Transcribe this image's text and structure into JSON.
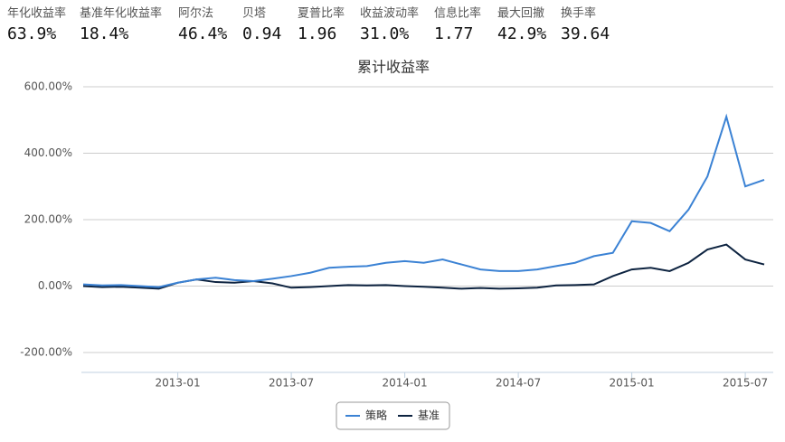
{
  "metrics": [
    {
      "label": "年化收益率",
      "value": "63.9%"
    },
    {
      "label": "基准年化收益率",
      "value": "18.4%"
    },
    {
      "label": "阿尔法",
      "value": "46.4%"
    },
    {
      "label": "贝塔",
      "value": "0.94"
    },
    {
      "label": "夏普比率",
      "value": "1.96"
    },
    {
      "label": "收益波动率",
      "value": "31.0%"
    },
    {
      "label": "信息比率",
      "value": "1.77"
    },
    {
      "label": "最大回撤",
      "value": "42.9%"
    },
    {
      "label": "换手率",
      "value": "39.64"
    }
  ],
  "chart_data": {
    "type": "line",
    "title": "累计收益率",
    "x": [
      "2012-08",
      "2012-09",
      "2012-10",
      "2012-11",
      "2012-12",
      "2013-01",
      "2013-02",
      "2013-03",
      "2013-04",
      "2013-05",
      "2013-06",
      "2013-07",
      "2013-08",
      "2013-09",
      "2013-10",
      "2013-11",
      "2013-12",
      "2014-01",
      "2014-02",
      "2014-03",
      "2014-04",
      "2014-05",
      "2014-06",
      "2014-07",
      "2014-08",
      "2014-09",
      "2014-10",
      "2014-11",
      "2014-12",
      "2015-01",
      "2015-02",
      "2015-03",
      "2015-04",
      "2015-05",
      "2015-06",
      "2015-07",
      "2015-08"
    ],
    "xticks": [
      "2013-01",
      "2013-07",
      "2014-01",
      "2014-07",
      "2015-01",
      "2015-07"
    ],
    "series": [
      {
        "name": "策略",
        "color": "#3b82d4",
        "values": [
          5,
          2,
          3,
          0,
          -3,
          10,
          20,
          25,
          18,
          15,
          22,
          30,
          40,
          55,
          58,
          60,
          70,
          75,
          70,
          80,
          65,
          50,
          45,
          45,
          50,
          60,
          70,
          90,
          100,
          195,
          190,
          165,
          230,
          330,
          510,
          300,
          320
        ]
      },
      {
        "name": "基准",
        "color": "#0d2340",
        "values": [
          0,
          -3,
          -2,
          -5,
          -8,
          10,
          20,
          12,
          10,
          15,
          8,
          -5,
          -3,
          0,
          3,
          2,
          3,
          0,
          -2,
          -5,
          -8,
          -6,
          -8,
          -7,
          -5,
          2,
          3,
          5,
          30,
          50,
          55,
          45,
          70,
          110,
          125,
          80,
          65
        ]
      }
    ],
    "ylim": [
      -260,
      600
    ],
    "yticks": [
      {
        "value": -200,
        "label": "-200.00%"
      },
      {
        "value": 0,
        "label": "0.00%"
      },
      {
        "value": 200,
        "label": "200.00%"
      },
      {
        "value": 400,
        "label": "400.00%"
      },
      {
        "value": 600,
        "label": "600.00%"
      }
    ],
    "grid": true
  }
}
